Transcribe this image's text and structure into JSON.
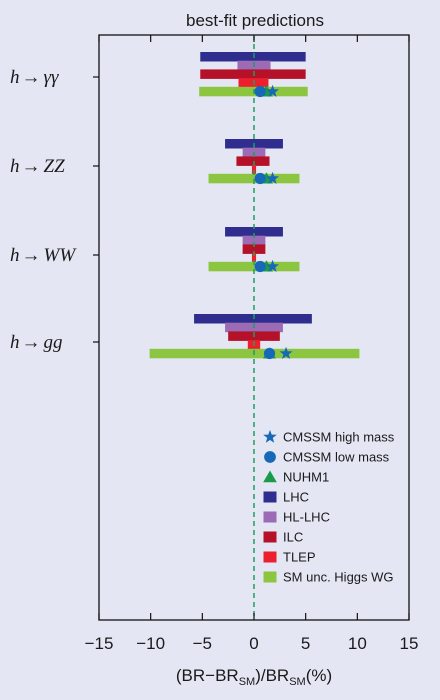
{
  "chart_data": {
    "type": "bar",
    "orientation": "horizontal-intervals",
    "title": "best-fit predictions",
    "xlabel": {
      "main": "(BR−BR",
      "sub": "SM",
      "mid": ")/BR",
      "sub2": "SM",
      "end": "(%)"
    },
    "xlim": [
      -15,
      15
    ],
    "xticks": [
      -15,
      -10,
      -5,
      0,
      5,
      10,
      15
    ],
    "xtick_labels": [
      "−15",
      "−10",
      "−5",
      "0",
      "5",
      "10",
      "15"
    ],
    "grid": false,
    "legend_position": "bottom-right",
    "reference_line": {
      "x": 0,
      "style": "dashed",
      "color": "#1aa060"
    },
    "categories": [
      {
        "id": "gamgam",
        "prefix": "h",
        "arrow": "→",
        "decay": "γγ"
      },
      {
        "id": "zz",
        "prefix": "h",
        "arrow": "→",
        "decay": "ZZ"
      },
      {
        "id": "ww",
        "prefix": "h",
        "arrow": "→",
        "decay": "WW"
      },
      {
        "id": "gg",
        "prefix": "h",
        "arrow": "→",
        "decay": "gg"
      }
    ],
    "bar_series": [
      {
        "name": "LHC",
        "color": "#2f2e8e",
        "intervals": [
          [
            -5.2,
            5.0
          ],
          [
            -2.8,
            2.8
          ],
          [
            -2.8,
            2.8
          ],
          [
            -5.8,
            5.6
          ]
        ]
      },
      {
        "name": "HL-LHC",
        "color": "#9b6bb5",
        "intervals": [
          [
            -1.6,
            1.6
          ],
          [
            -1.1,
            1.1
          ],
          [
            -1.1,
            1.1
          ],
          [
            -2.8,
            2.8
          ]
        ]
      },
      {
        "name": "ILC",
        "color": "#b5122a",
        "intervals": [
          [
            -5.2,
            5.0
          ],
          [
            -1.7,
            1.5
          ],
          [
            -1.1,
            1.1
          ],
          [
            -2.5,
            2.5
          ]
        ]
      },
      {
        "name": "TLEP",
        "color": "#ec1f2e",
        "intervals": [
          [
            -1.5,
            1.4
          ],
          [
            -0.2,
            0.2
          ],
          [
            -0.2,
            0.2
          ],
          [
            -0.6,
            0.6
          ]
        ]
      },
      {
        "name": "SM unc. Higgs WG",
        "color": "#8cc53f",
        "intervals": [
          [
            -5.3,
            5.2
          ],
          [
            -4.4,
            4.4
          ],
          [
            -4.4,
            4.4
          ],
          [
            -10.1,
            10.2
          ]
        ]
      }
    ],
    "point_series": [
      {
        "name": "CMSSM high mass",
        "marker": "star",
        "color": "#1769b8",
        "x": [
          1.8,
          1.8,
          1.8,
          3.1
        ]
      },
      {
        "name": "CMSSM low mass",
        "marker": "circle",
        "color": "#1769b8",
        "x": [
          0.6,
          0.6,
          0.6,
          1.5
        ]
      },
      {
        "name": "NUHM1",
        "marker": "triangle",
        "color": "#1a9b4a",
        "x": [
          1.2,
          1.2,
          1.2,
          1.5
        ]
      }
    ],
    "legend_order": [
      "CMSSM high mass",
      "CMSSM low mass",
      "NUHM1",
      "LHC",
      "HL-LHC",
      "ILC",
      "TLEP",
      "SM unc. Higgs WG"
    ]
  }
}
